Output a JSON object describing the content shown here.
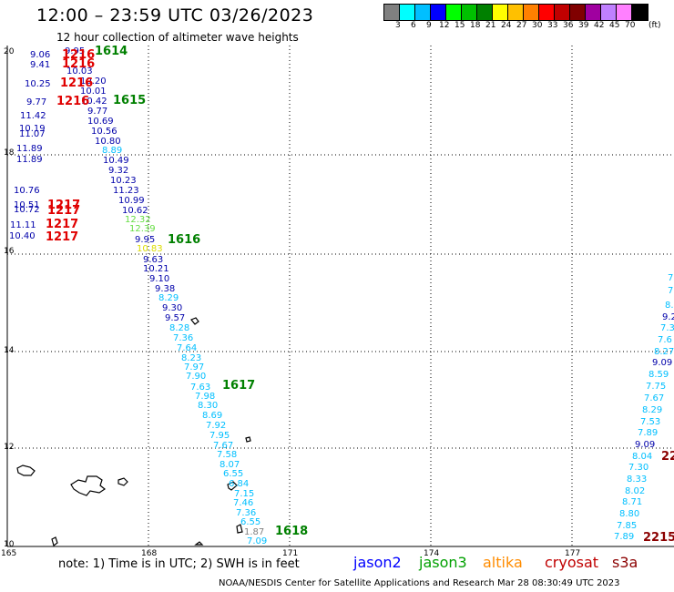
{
  "header": {
    "title": "12:00 – 23:59 UTC 03/26/2023",
    "subtitle": "12 hour collection of altimeter wave heights"
  },
  "colorbar": {
    "colors": [
      "#808080",
      "#00ffff",
      "#00bfff",
      "#0000ff",
      "#00ff00",
      "#00c000",
      "#008000",
      "#ffff00",
      "#ffc000",
      "#ff8000",
      "#ff0000",
      "#c00000",
      "#800000",
      "#a000a0",
      "#c080ff",
      "#ff80ff",
      "#000000"
    ],
    "labels": [
      "3",
      "6",
      "9",
      "12",
      "15",
      "18",
      "21",
      "24",
      "27",
      "30",
      "33",
      "36",
      "39",
      "42",
      "45",
      "70",
      "(ft)"
    ]
  },
  "axes": {
    "lat_labels": [
      "20",
      "18",
      "16",
      "14",
      "12",
      "10"
    ],
    "lon_labels": [
      "165",
      "168",
      "171",
      "174",
      "177"
    ]
  },
  "footer": {
    "note": "note: 1) Time is in UTC; 2) SWH is in feet",
    "legend": [
      {
        "name": "jason2",
        "color": "#0000ff"
      },
      {
        "name": "jason3",
        "color": "#00a000"
      },
      {
        "name": "altika",
        "color": "#ff8c00"
      },
      {
        "name": "cryosat",
        "color": "#c00000"
      },
      {
        "name": "s3a",
        "color": "#8b0000"
      }
    ],
    "credit": "NOAA/NESDIS Center for Satellite Applications and Research   Mar 28 08:30:49 UTC 2023"
  },
  "wave_values": {
    "jason3_track": [
      {
        "v": "9.95",
        "c": "#0000aa"
      },
      {
        "v": "10.03",
        "c": "#0000aa"
      },
      {
        "v": "10.20",
        "c": "#0000aa"
      },
      {
        "v": "10.01",
        "c": "#0000aa"
      },
      {
        "v": "10.42",
        "c": "#0000aa"
      },
      {
        "v": "9.77",
        "c": "#0000aa"
      },
      {
        "v": "10.69",
        "c": "#0000aa"
      },
      {
        "v": "10.56",
        "c": "#0000aa"
      },
      {
        "v": "10.80",
        "c": "#0000aa"
      },
      {
        "v": "8.89",
        "c": "#00bfff"
      },
      {
        "v": "10.49",
        "c": "#0000aa"
      },
      {
        "v": "9.32",
        "c": "#0000aa"
      },
      {
        "v": "10.23",
        "c": "#0000aa"
      },
      {
        "v": "11.23",
        "c": "#0000aa"
      },
      {
        "v": "10.99",
        "c": "#0000aa"
      },
      {
        "v": "10.62",
        "c": "#0000aa"
      },
      {
        "v": "12.32",
        "c": "#66dd44"
      },
      {
        "v": "12.39",
        "c": "#66dd44"
      },
      {
        "v": "9.95",
        "c": "#0000aa"
      },
      {
        "v": "10.83",
        "c": "#dddd00"
      },
      {
        "v": "9.63",
        "c": "#0000aa"
      },
      {
        "v": "10.21",
        "c": "#0000aa"
      },
      {
        "v": "9.10",
        "c": "#0000aa"
      },
      {
        "v": "9.38",
        "c": "#0000aa"
      },
      {
        "v": "8.29",
        "c": "#00bfff"
      },
      {
        "v": "9.30",
        "c": "#0000aa"
      },
      {
        "v": "9.57",
        "c": "#0000aa"
      },
      {
        "v": "8.28",
        "c": "#00bfff"
      },
      {
        "v": "7.36",
        "c": "#00bfff"
      },
      {
        "v": "7.64",
        "c": "#00bfff"
      },
      {
        "v": "8.23",
        "c": "#00bfff"
      },
      {
        "v": "7.97",
        "c": "#00bfff"
      },
      {
        "v": "7.90",
        "c": "#00bfff"
      },
      {
        "v": "7.63",
        "c": "#00bfff"
      },
      {
        "v": "7.98",
        "c": "#00bfff"
      },
      {
        "v": "8.30",
        "c": "#00bfff"
      },
      {
        "v": "8.69",
        "c": "#00bfff"
      },
      {
        "v": "7.92",
        "c": "#00bfff"
      },
      {
        "v": "7.95",
        "c": "#00bfff"
      },
      {
        "v": "7.67",
        "c": "#00bfff"
      },
      {
        "v": "7.58",
        "c": "#00bfff"
      },
      {
        "v": "8.07",
        "c": "#00bfff"
      },
      {
        "v": "6.55",
        "c": "#00bfff"
      },
      {
        "v": "6.84",
        "c": "#00bfff"
      },
      {
        "v": "7.15",
        "c": "#00bfff"
      },
      {
        "v": "7.46",
        "c": "#00bfff"
      },
      {
        "v": "7.36",
        "c": "#00bfff"
      },
      {
        "v": "6.55",
        "c": "#00bfff"
      },
      {
        "v": "1.87",
        "c": "#808080"
      },
      {
        "v": "7.09",
        "c": "#00bfff"
      }
    ],
    "west_track": [
      {
        "v": "9.06",
        "c": "#0000aa"
      },
      {
        "v": "9.41",
        "c": "#0000aa"
      },
      {
        "v": "10.25",
        "c": "#0000aa"
      },
      {
        "v": "9.77",
        "c": "#0000aa"
      },
      {
        "v": "11.42",
        "c": "#0000aa"
      },
      {
        "v": "10.19",
        "c": "#0000aa"
      },
      {
        "v": "11.07",
        "c": "#0000aa"
      },
      {
        "v": "11.89",
        "c": "#0000aa"
      },
      {
        "v": "11.89",
        "c": "#0000aa"
      },
      {
        "v": "10.76",
        "c": "#0000aa"
      },
      {
        "v": "10.51",
        "c": "#0000aa"
      },
      {
        "v": "10.72",
        "c": "#0000aa"
      },
      {
        "v": "11.11",
        "c": "#0000aa"
      },
      {
        "v": "10.40",
        "c": "#0000aa"
      }
    ],
    "east_track": [
      {
        "v": "7",
        "c": "#00bfff"
      },
      {
        "v": "7",
        "c": "#00bfff"
      },
      {
        "v": "8.",
        "c": "#00bfff"
      },
      {
        "v": "9.2",
        "c": "#0000aa"
      },
      {
        "v": "7.3",
        "c": "#00bfff"
      },
      {
        "v": "7.6",
        "c": "#00bfff"
      },
      {
        "v": "8.27",
        "c": "#00bfff"
      },
      {
        "v": "9.09",
        "c": "#0000aa"
      },
      {
        "v": "8.59",
        "c": "#00bfff"
      },
      {
        "v": "7.75",
        "c": "#00bfff"
      },
      {
        "v": "7.67",
        "c": "#00bfff"
      },
      {
        "v": "8.29",
        "c": "#00bfff"
      },
      {
        "v": "7.53",
        "c": "#00bfff"
      },
      {
        "v": "7.89",
        "c": "#00bfff"
      },
      {
        "v": "9.09",
        "c": "#0000aa"
      },
      {
        "v": "8.04",
        "c": "#00bfff"
      },
      {
        "v": "7.30",
        "c": "#00bfff"
      },
      {
        "v": "8.33",
        "c": "#00bfff"
      },
      {
        "v": "8.02",
        "c": "#00bfff"
      },
      {
        "v": "8.71",
        "c": "#00bfff"
      },
      {
        "v": "8.80",
        "c": "#00bfff"
      },
      {
        "v": "7.85",
        "c": "#00bfff"
      },
      {
        "v": "7.89",
        "c": "#00bfff"
      }
    ]
  },
  "pass_times": [
    {
      "t": "1614",
      "c": "#008000"
    },
    {
      "t": "1216",
      "c": "#e00000"
    },
    {
      "t": "1216",
      "c": "#e00000"
    },
    {
      "t": "1216",
      "c": "#e00000"
    },
    {
      "t": "1216",
      "c": "#e00000"
    },
    {
      "t": "1615",
      "c": "#008000"
    },
    {
      "t": "1217",
      "c": "#e00000"
    },
    {
      "t": "1217",
      "c": "#e00000"
    },
    {
      "t": "1217",
      "c": "#e00000"
    },
    {
      "t": "1217",
      "c": "#e00000"
    },
    {
      "t": "1616",
      "c": "#008000"
    },
    {
      "t": "1617",
      "c": "#008000"
    },
    {
      "t": "1618",
      "c": "#008000"
    },
    {
      "t": "22",
      "c": "#8b0000"
    },
    {
      "t": "2215",
      "c": "#8b0000"
    }
  ]
}
